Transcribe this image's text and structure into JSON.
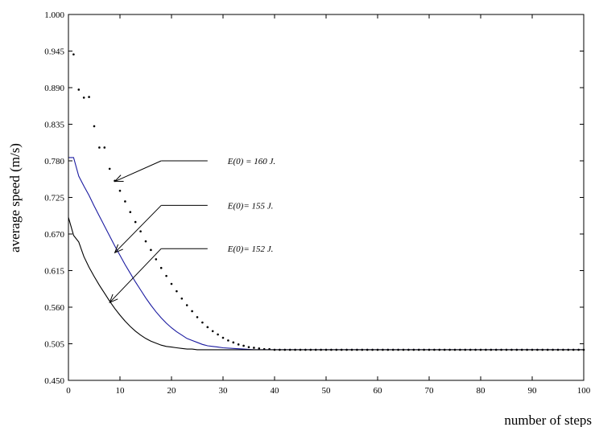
{
  "chart_data": {
    "type": "line",
    "xlabel": "number of steps",
    "ylabel": "average speed (m/s)",
    "xlim": [
      0,
      100
    ],
    "ylim": [
      0.45,
      1.0
    ],
    "x_ticks": [
      0,
      10,
      20,
      30,
      40,
      50,
      60,
      70,
      80,
      90,
      100
    ],
    "y_ticks": [
      0.45,
      0.505,
      0.56,
      0.615,
      0.67,
      0.725,
      0.78,
      0.835,
      0.89,
      0.945,
      1.0
    ],
    "x_tick_labels": [
      "0",
      "10",
      "20",
      "30",
      "40",
      "50",
      "60",
      "70",
      "80",
      "90",
      "100"
    ],
    "y_tick_labels": [
      "0.450",
      "0.505",
      "0.560",
      "0.615",
      "0.670",
      "0.725",
      "0.780",
      "0.835",
      "0.890",
      "0.945",
      "1.000"
    ],
    "grid": false,
    "series": [
      {
        "name": "E(0) = 160 J.",
        "style": "dotted",
        "color": "#000000",
        "x": [
          1,
          2,
          3,
          4,
          5,
          6,
          7,
          8,
          9,
          10,
          11,
          12,
          13,
          14,
          15,
          16,
          17,
          18,
          19,
          20,
          21,
          22,
          23,
          24,
          25,
          26,
          27,
          28,
          29,
          30,
          31,
          32,
          33,
          34,
          35,
          36,
          37,
          38,
          39,
          40,
          41,
          42,
          43,
          44,
          45,
          46,
          47,
          48,
          49,
          50,
          51,
          52,
          53,
          54,
          55,
          56,
          57,
          58,
          59,
          60,
          61,
          62,
          63,
          64,
          65,
          66,
          67,
          68,
          69,
          70,
          71,
          72,
          73,
          74,
          75,
          76,
          77,
          78,
          79,
          80,
          81,
          82,
          83,
          84,
          85,
          86,
          87,
          88,
          89,
          90,
          91,
          92,
          93,
          94,
          95,
          96,
          97,
          98,
          99,
          100
        ],
        "y": [
          0.94,
          0.887,
          0.875,
          0.876,
          0.832,
          0.8,
          0.8,
          0.768,
          0.75,
          0.735,
          0.719,
          0.703,
          0.688,
          0.674,
          0.659,
          0.646,
          0.632,
          0.619,
          0.607,
          0.595,
          0.584,
          0.573,
          0.563,
          0.554,
          0.545,
          0.537,
          0.53,
          0.524,
          0.519,
          0.514,
          0.51,
          0.507,
          0.504,
          0.502,
          0.5,
          0.499,
          0.498,
          0.497,
          0.497,
          0.496,
          0.496,
          0.496,
          0.496,
          0.496,
          0.496,
          0.496,
          0.496,
          0.496,
          0.496,
          0.496,
          0.496,
          0.496,
          0.496,
          0.496,
          0.496,
          0.496,
          0.496,
          0.496,
          0.496,
          0.496,
          0.496,
          0.496,
          0.496,
          0.496,
          0.496,
          0.496,
          0.496,
          0.496,
          0.496,
          0.496,
          0.496,
          0.496,
          0.496,
          0.496,
          0.496,
          0.496,
          0.496,
          0.496,
          0.496,
          0.496,
          0.496,
          0.496,
          0.496,
          0.496,
          0.496,
          0.496,
          0.496,
          0.496,
          0.496,
          0.496,
          0.496,
          0.496,
          0.496,
          0.496,
          0.496,
          0.496,
          0.496,
          0.496,
          0.496,
          0.496
        ]
      },
      {
        "name": "E(0)= 155 J.",
        "style": "solid",
        "color": "#1a1aa0",
        "x": [
          0,
          1,
          2,
          3,
          4,
          5,
          6,
          7,
          8,
          9,
          10,
          11,
          12,
          13,
          14,
          15,
          16,
          17,
          18,
          19,
          20,
          21,
          22,
          23,
          24,
          25,
          26,
          27,
          28,
          29,
          30,
          32,
          34,
          36,
          38,
          40,
          45,
          50,
          60,
          70,
          80,
          90,
          100
        ],
        "y": [
          0.785,
          0.785,
          0.757,
          0.742,
          0.728,
          0.712,
          0.697,
          0.682,
          0.667,
          0.652,
          0.638,
          0.624,
          0.611,
          0.598,
          0.586,
          0.574,
          0.563,
          0.553,
          0.544,
          0.536,
          0.529,
          0.523,
          0.518,
          0.513,
          0.51,
          0.507,
          0.504,
          0.502,
          0.501,
          0.5,
          0.499,
          0.498,
          0.497,
          0.496,
          0.496,
          0.496,
          0.496,
          0.496,
          0.496,
          0.496,
          0.496,
          0.496,
          0.496
        ]
      },
      {
        "name": "E(0)= 152 J.",
        "style": "solid",
        "color": "#000000",
        "x": [
          0,
          1,
          2,
          3,
          4,
          5,
          6,
          7,
          8,
          9,
          10,
          11,
          12,
          13,
          14,
          15,
          16,
          17,
          18,
          19,
          20,
          21,
          22,
          23,
          24,
          25,
          26,
          27,
          28,
          30,
          32,
          34,
          36,
          40,
          45,
          50,
          60,
          70,
          80,
          90,
          100
        ],
        "y": [
          0.695,
          0.668,
          0.658,
          0.636,
          0.62,
          0.606,
          0.593,
          0.581,
          0.569,
          0.558,
          0.548,
          0.539,
          0.531,
          0.524,
          0.518,
          0.513,
          0.509,
          0.506,
          0.503,
          0.501,
          0.5,
          0.499,
          0.498,
          0.497,
          0.497,
          0.496,
          0.496,
          0.496,
          0.496,
          0.496,
          0.496,
          0.496,
          0.496,
          0.496,
          0.496,
          0.496,
          0.496,
          0.496,
          0.496,
          0.496,
          0.496
        ]
      }
    ],
    "annotations": [
      {
        "text": "E(0) = 160 J.",
        "series": 0,
        "label_x": 27,
        "label_y": 0.78,
        "arrow_x": 9,
        "arrow_y": 0.749
      },
      {
        "text": "E(0)= 155 J.",
        "series": 1,
        "label_x": 27,
        "label_y": 0.713,
        "arrow_x": 9,
        "arrow_y": 0.642
      },
      {
        "text": "E(0)= 152 J.",
        "series": 2,
        "label_x": 27,
        "label_y": 0.648,
        "arrow_x": 8,
        "arrow_y": 0.567
      }
    ]
  }
}
